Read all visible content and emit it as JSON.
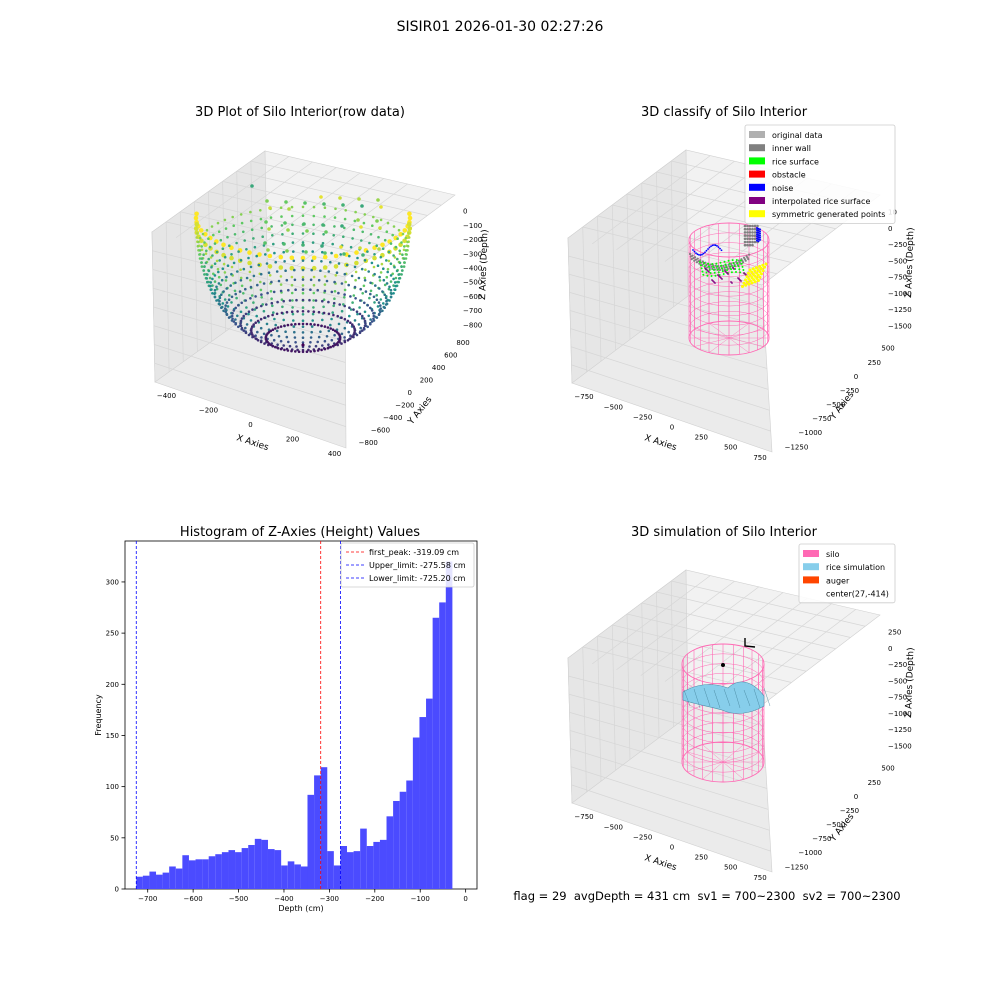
{
  "figure_title": "SISIR01 2026-01-30 02:27:26",
  "status_text": "flag = 29  avgDepth = 431 cm  sv1 = 700~2300  sv2 = 700~2300",
  "colors": {
    "hist_bar": "#4b4bff",
    "first_peak": "#ff0000",
    "limit": "#0000ff",
    "silo": "#ff69b4",
    "rice_simulation": "#87ceeb",
    "auger": "#ff4500",
    "original_data": "#b0b0b0",
    "inner_wall": "#808080",
    "rice_surface": "#00ff00",
    "obstacle": "#ff0000",
    "noise": "#0000ff",
    "interpolated_rice_surface": "#800080",
    "symmetric_generated_points": "#ffff00"
  },
  "chart_data": [
    {
      "type": "scatter",
      "title": "3D Plot of Silo Interior(row data)",
      "xlabel": "X Axies",
      "ylabel": "Y Axies",
      "zlabel": "Z Axies (Depth)",
      "xticks": [
        "−400",
        "−200",
        "0",
        "200",
        "400"
      ],
      "yticks": [
        "−800",
        "−600",
        "−400",
        "−200",
        "0",
        "200",
        "400",
        "600",
        "800"
      ],
      "zticks": [
        "0",
        "−100",
        "−200",
        "−300",
        "−400",
        "−500",
        "−600",
        "−700",
        "−800"
      ],
      "colormap": "viridis",
      "grid": true
    },
    {
      "type": "scatter",
      "title": "3D classify of Silo Interior",
      "xlabel": "X Axies",
      "ylabel": "Y Axies",
      "zlabel": "Z Axies (Depth)",
      "xticks": [
        "−750",
        "−500",
        "−250",
        "0",
        "250",
        "500",
        "750"
      ],
      "yticks": [
        "−1250",
        "−1000",
        "−750",
        "−500",
        "−250",
        "0",
        "250",
        "500"
      ],
      "zticks": [
        "10",
        "0",
        "−250",
        "−500",
        "−750",
        "−1000",
        "−1250",
        "−1500"
      ],
      "legend": [
        {
          "label": "original data",
          "color": "#b0b0b0"
        },
        {
          "label": "inner wall",
          "color": "#808080"
        },
        {
          "label": "rice surface",
          "color": "#00ff00"
        },
        {
          "label": "obstacle",
          "color": "#ff0000"
        },
        {
          "label": "noise",
          "color": "#0000ff"
        },
        {
          "label": "interpolated rice surface",
          "color": "#800080"
        },
        {
          "label": "symmetric generated points",
          "color": "#ffff00"
        }
      ],
      "legend_position": "top-right",
      "grid": true
    },
    {
      "type": "bar",
      "title": "Histogram of Z-Axies (Height) Values",
      "xlabel": "Depth (cm)",
      "ylabel": "Frequency",
      "xlim": [
        -750,
        25
      ],
      "ylim": [
        0,
        340
      ],
      "xticks": [
        -700,
        -600,
        -500,
        -400,
        -300,
        -200,
        -100,
        0
      ],
      "yticks": [
        0,
        50,
        100,
        150,
        200,
        250,
        300
      ],
      "bin_start": -725.2,
      "bin_width": 14.5,
      "values": [
        12,
        13,
        17,
        14,
        16,
        22,
        20,
        33,
        28,
        29,
        29,
        32,
        34,
        36,
        38,
        36,
        40,
        43,
        49,
        48,
        39,
        38,
        23,
        27,
        24,
        22,
        92,
        111,
        119,
        37,
        23,
        42,
        36,
        37,
        59,
        42,
        46,
        48,
        71,
        86,
        95,
        106,
        148,
        168,
        186,
        265,
        280,
        320
      ],
      "lines": [
        {
          "label": "first_peak: -319.09 cm",
          "x": -319.09,
          "color": "#ff0000"
        },
        {
          "label": "Upper_limit: -275.58 cm",
          "x": -275.58,
          "color": "#0000ff"
        },
        {
          "label": "Lower_limit: -725.20 cm",
          "x": -725.2,
          "color": "#0000ff"
        }
      ],
      "legend_position": "top-right"
    },
    {
      "type": "scatter",
      "title": "3D simulation of Silo Interior",
      "xlabel": "X Axies",
      "ylabel": "Y Axies",
      "zlabel": "Z Axies (Depth)",
      "xticks": [
        "−750",
        "−500",
        "−250",
        "0",
        "250",
        "500",
        "750"
      ],
      "yticks": [
        "−1250",
        "−1000",
        "−750",
        "−500",
        "−250",
        "0",
        "250",
        "500"
      ],
      "zticks": [
        "250",
        "0",
        "−250",
        "−500",
        "−750",
        "−1000",
        "−1250",
        "−1500"
      ],
      "legend": [
        {
          "label": "silo",
          "color": "#ff69b4"
        },
        {
          "label": "rice simulation",
          "color": "#87ceeb"
        },
        {
          "label": "auger",
          "color": "#ff4500"
        },
        {
          "label": "center(27,-414)",
          "color": ""
        }
      ],
      "legend_position": "top-right",
      "grid": true
    }
  ]
}
